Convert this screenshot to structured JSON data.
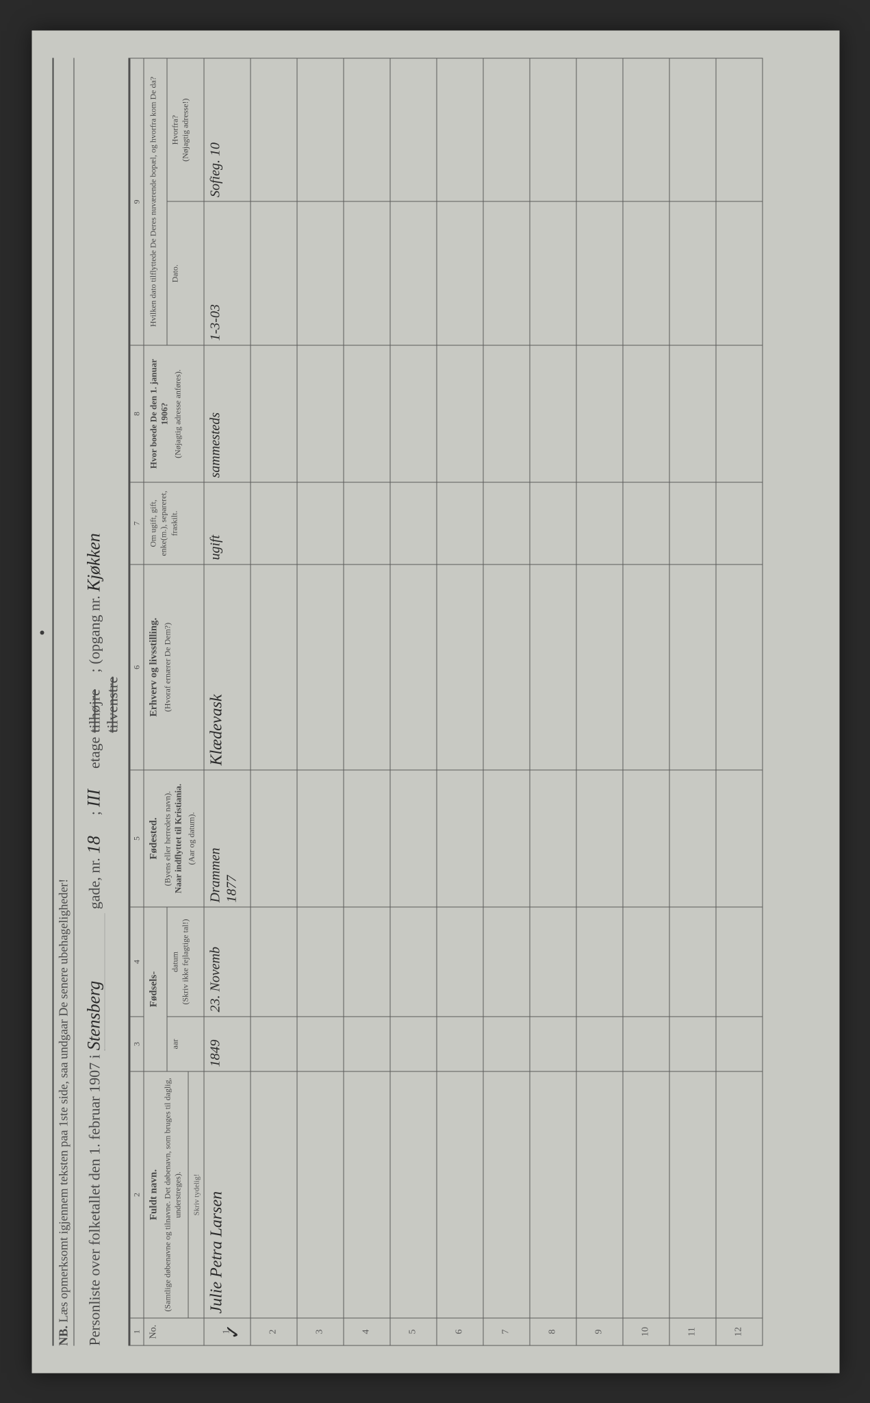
{
  "header": {
    "nb_prefix": "NB.",
    "nb_text": "Læs opmerksomt igjennem teksten paa 1ste side, saa undgaar De senere ubehageligheder!",
    "title_prefix": "Personliste over folketallet den 1. februar 1907 i",
    "street": "Stensberg",
    "gade_label": "gade, nr.",
    "nr": "18",
    "semicolon1": ";",
    "etage": "III",
    "etage_label": "etage",
    "tilhojre": "tilhøjre",
    "tilvenstre": "tilvenstre",
    "semicolon2": ";",
    "opgang_label": "(opgang nr.",
    "opgang": "Kjøkken",
    "close_paren": ")"
  },
  "columns": {
    "c1": "1",
    "c2": "2",
    "c3": "3",
    "c4": "4",
    "c5": "5",
    "c6": "6",
    "c7": "7",
    "c8": "8",
    "c9": "9",
    "no_label": "No.",
    "name_title": "Fuldt navn.",
    "name_detail": "(Samtlige døbenavne og tilnavne. Det døbenavn, som bruges til daglig, understreges).",
    "name_skriv": "Skriv tydelig!",
    "birth_title": "Fødsels-",
    "birth_year": "aar",
    "birth_date": "datum",
    "birth_note": "(Skriv ikke fejlagtige tal!)",
    "birthplace_title": "Fødested.",
    "birthplace_detail1": "(Byens eller herredets navn).",
    "birthplace_detail2": "Naar indflyttet til Kristiania.",
    "birthplace_detail3": "(Aar og datum).",
    "occupation_title": "Erhverv og livsstilling.",
    "occupation_detail": "(Hvoraf ernærer De Dem?)",
    "marital_title": "Om ugift, gift, enke(m.), separeret, fraskilt.",
    "addr1906_title": "Hvor boede De den 1. januar 1906?",
    "addr1906_detail": "(Nøjagtig adresse anføres).",
    "moved_title": "Hvilken dato tilflyttede De Deres nuværende bopæl, og hvorfra kom De da?",
    "moved_date": "Dato.",
    "moved_from": "Hvorfra?",
    "moved_from_detail": "(Nøjagtig adresse!)"
  },
  "rows": [
    {
      "no": "1",
      "checkmark": "✓",
      "name": "Julie Petra Larsen",
      "year": "1849",
      "date": "23. Novemb",
      "birthplace": "Drammen",
      "moved_year": "1877",
      "occupation": "Klædevask",
      "marital": "ugift",
      "addr1906": "sammesteds",
      "moved_date": "1-3-03",
      "moved_from": "Sofieg. 10"
    },
    {
      "no": "2"
    },
    {
      "no": "3"
    },
    {
      "no": "4"
    },
    {
      "no": "5"
    },
    {
      "no": "6"
    },
    {
      "no": "7"
    },
    {
      "no": "8"
    },
    {
      "no": "9"
    },
    {
      "no": "10"
    },
    {
      "no": "11"
    },
    {
      "no": "12"
    }
  ],
  "colors": {
    "paper": "#c8c9c3",
    "ink_print": "#4a4a4a",
    "ink_hand": "#2a2a2a",
    "rule": "#5a5a5a",
    "frame": "#2a2a2a"
  }
}
